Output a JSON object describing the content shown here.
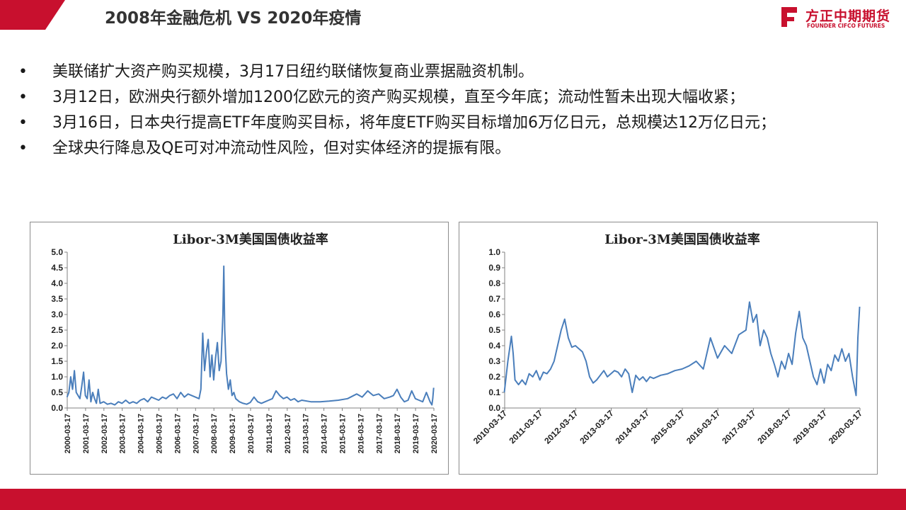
{
  "header": {
    "title": "2008年金融危机  VS 2020年疫情",
    "title_icon": "chart-growth-icon",
    "brand_color": "#c8102e"
  },
  "logo": {
    "cn": "方正中期期货",
    "en": "FOUNDER CIFCO FUTURES"
  },
  "bullets": [
    {
      "marker": "•",
      "text": "美联储扩大资产购买规模，3月17日纽约联储恢复商业票据融资机制。"
    },
    {
      "marker": "•",
      "text": "3月12日，欧洲央行额外增加1200亿欧元的资产购买规模，直至今年底；流动性暂未出现大幅收紧；"
    },
    {
      "marker": "•",
      "text": "3月16日，日本央行提高ETF年度购买目标，将年度ETF购买目标增加6万亿日元，总规模达12万亿日元；"
    },
    {
      "marker": "•",
      "text": "全球央行降息及QE可对冲流动性风险，但对实体经济的提振有限。"
    }
  ],
  "chart_data": [
    {
      "type": "line",
      "title": "Libor-3M美国国债收益率",
      "xlabel": "",
      "ylabel": "",
      "ylim": [
        0,
        5
      ],
      "y_ticks": [
        "0.0",
        "0.5",
        "1.0",
        "1.5",
        "2.0",
        "2.5",
        "3.0",
        "3.5",
        "4.0",
        "4.5",
        "5.0"
      ],
      "x_ticks": [
        "2000-03-17",
        "2001-03-17",
        "2002-03-17",
        "2003-03-17",
        "2004-03-17",
        "2005-03-17",
        "2006-03-17",
        "2007-03-17",
        "2008-03-17",
        "2009-03-17",
        "2010-03-17",
        "2011-03-17",
        "2012-03-17",
        "2013-03-17",
        "2014-03-17",
        "2015-03-17",
        "2016-03-17",
        "2017-03-17",
        "2018-03-17",
        "2019-03-17",
        "2020-03-17"
      ],
      "grid": false,
      "line_color": "#4a7ebb",
      "series": [
        {
          "x": [
            2000.2,
            2000.3,
            2000.4,
            2000.5,
            2000.6,
            2000.7,
            2000.8,
            2000.9,
            2001.0,
            2001.1,
            2001.2,
            2001.3,
            2001.4,
            2001.5,
            2001.6,
            2001.7,
            2001.8,
            2001.9,
            2002.0,
            2002.2,
            2002.4,
            2002.6,
            2002.8,
            2003.0,
            2003.2,
            2003.4,
            2003.6,
            2003.8,
            2004.0,
            2004.2,
            2004.4,
            2004.6,
            2004.8,
            2005.0,
            2005.2,
            2005.4,
            2005.6,
            2005.8,
            2006.0,
            2006.2,
            2006.4,
            2006.6,
            2006.8,
            2007.0,
            2007.2,
            2007.4,
            2007.5,
            2007.6,
            2007.7,
            2007.8,
            2007.9,
            2008.0,
            2008.1,
            2008.2,
            2008.3,
            2008.4,
            2008.5,
            2008.6,
            2008.7,
            2008.75,
            2008.8,
            2008.85,
            2008.9,
            2009.0,
            2009.1,
            2009.2,
            2009.3,
            2009.4,
            2009.6,
            2009.8,
            2010.0,
            2010.2,
            2010.4,
            2010.6,
            2010.8,
            2011.0,
            2011.2,
            2011.4,
            2011.6,
            2011.8,
            2012.0,
            2012.2,
            2012.4,
            2012.6,
            2012.8,
            2013.0,
            2013.5,
            2014.0,
            2014.5,
            2015.0,
            2015.5,
            2016.0,
            2016.3,
            2016.6,
            2016.9,
            2017.2,
            2017.5,
            2017.8,
            2018.0,
            2018.2,
            2018.4,
            2018.6,
            2018.8,
            2019.0,
            2019.2,
            2019.4,
            2019.6,
            2019.8,
            2020.0,
            2020.1,
            2020.15,
            2020.2
          ],
          "y": [
            0.35,
            0.5,
            1.0,
            0.6,
            1.2,
            0.5,
            0.4,
            0.3,
            0.7,
            1.15,
            0.4,
            0.3,
            0.9,
            0.2,
            0.5,
            0.3,
            0.15,
            0.6,
            0.15,
            0.2,
            0.12,
            0.15,
            0.1,
            0.2,
            0.15,
            0.25,
            0.15,
            0.2,
            0.15,
            0.25,
            0.3,
            0.2,
            0.35,
            0.3,
            0.25,
            0.35,
            0.3,
            0.4,
            0.45,
            0.3,
            0.5,
            0.35,
            0.45,
            0.4,
            0.35,
            0.3,
            0.6,
            2.4,
            1.2,
            1.8,
            2.2,
            1.0,
            1.7,
            0.9,
            1.6,
            2.1,
            1.2,
            1.5,
            3.0,
            4.55,
            2.5,
            1.7,
            1.1,
            0.6,
            0.9,
            0.4,
            0.5,
            0.3,
            0.2,
            0.15,
            0.12,
            0.18,
            0.35,
            0.2,
            0.15,
            0.2,
            0.25,
            0.3,
            0.55,
            0.4,
            0.3,
            0.35,
            0.25,
            0.3,
            0.2,
            0.25,
            0.2,
            0.2,
            0.22,
            0.25,
            0.3,
            0.45,
            0.35,
            0.55,
            0.4,
            0.45,
            0.3,
            0.35,
            0.4,
            0.6,
            0.35,
            0.2,
            0.25,
            0.55,
            0.3,
            0.25,
            0.2,
            0.5,
            0.2,
            0.1,
            0.3,
            0.65
          ]
        }
      ]
    },
    {
      "type": "line",
      "title": "Libor-3M美国国债收益率",
      "xlabel": "",
      "ylabel": "",
      "ylim": [
        0,
        1
      ],
      "y_ticks": [
        "0.0",
        "0.1",
        "0.2",
        "0.3",
        "0.4",
        "0.5",
        "0.6",
        "0.7",
        "0.8",
        "0.9",
        "1.0"
      ],
      "x_ticks": [
        "2010-03-17",
        "2011-03-17",
        "2012-03-17",
        "2013-03-17",
        "2014-03-17",
        "2015-03-17",
        "2016-03-17",
        "2017-03-17",
        "2018-03-17",
        "2019-03-17",
        "2020-03-17"
      ],
      "grid": false,
      "line_color": "#4a7ebb",
      "series": [
        {
          "x": [
            2010.2,
            2010.3,
            2010.4,
            2010.45,
            2010.5,
            2010.6,
            2010.7,
            2010.8,
            2010.9,
            2011.0,
            2011.1,
            2011.2,
            2011.3,
            2011.4,
            2011.5,
            2011.6,
            2011.7,
            2011.8,
            2011.9,
            2012.0,
            2012.1,
            2012.2,
            2012.3,
            2012.4,
            2012.5,
            2012.6,
            2012.7,
            2012.8,
            2013.0,
            2013.1,
            2013.2,
            2013.3,
            2013.4,
            2013.5,
            2013.6,
            2013.7,
            2013.8,
            2013.9,
            2014.0,
            2014.1,
            2014.2,
            2014.3,
            2014.4,
            2014.6,
            2014.8,
            2015.0,
            2015.2,
            2015.4,
            2015.6,
            2015.8,
            2016.0,
            2016.2,
            2016.4,
            2016.6,
            2016.8,
            2017.0,
            2017.1,
            2017.2,
            2017.3,
            2017.4,
            2017.5,
            2017.6,
            2017.7,
            2017.8,
            2017.9,
            2018.0,
            2018.1,
            2018.2,
            2018.3,
            2018.4,
            2018.5,
            2018.6,
            2018.7,
            2018.8,
            2018.9,
            2019.0,
            2019.1,
            2019.2,
            2019.3,
            2019.4,
            2019.5,
            2019.6,
            2019.7,
            2019.8,
            2019.9,
            2020.0,
            2020.1,
            2020.15,
            2020.2
          ],
          "y": [
            0.1,
            0.3,
            0.46,
            0.35,
            0.18,
            0.15,
            0.18,
            0.15,
            0.22,
            0.2,
            0.24,
            0.18,
            0.23,
            0.22,
            0.25,
            0.3,
            0.4,
            0.5,
            0.57,
            0.45,
            0.39,
            0.4,
            0.38,
            0.36,
            0.3,
            0.2,
            0.16,
            0.18,
            0.24,
            0.2,
            0.22,
            0.24,
            0.23,
            0.2,
            0.25,
            0.22,
            0.1,
            0.21,
            0.18,
            0.2,
            0.17,
            0.2,
            0.19,
            0.21,
            0.22,
            0.24,
            0.25,
            0.27,
            0.3,
            0.25,
            0.45,
            0.32,
            0.4,
            0.35,
            0.47,
            0.5,
            0.68,
            0.55,
            0.6,
            0.4,
            0.5,
            0.45,
            0.35,
            0.28,
            0.2,
            0.3,
            0.25,
            0.35,
            0.28,
            0.48,
            0.62,
            0.45,
            0.4,
            0.3,
            0.2,
            0.15,
            0.25,
            0.16,
            0.28,
            0.24,
            0.34,
            0.3,
            0.38,
            0.3,
            0.35,
            0.2,
            0.08,
            0.45,
            0.65
          ]
        }
      ]
    }
  ]
}
